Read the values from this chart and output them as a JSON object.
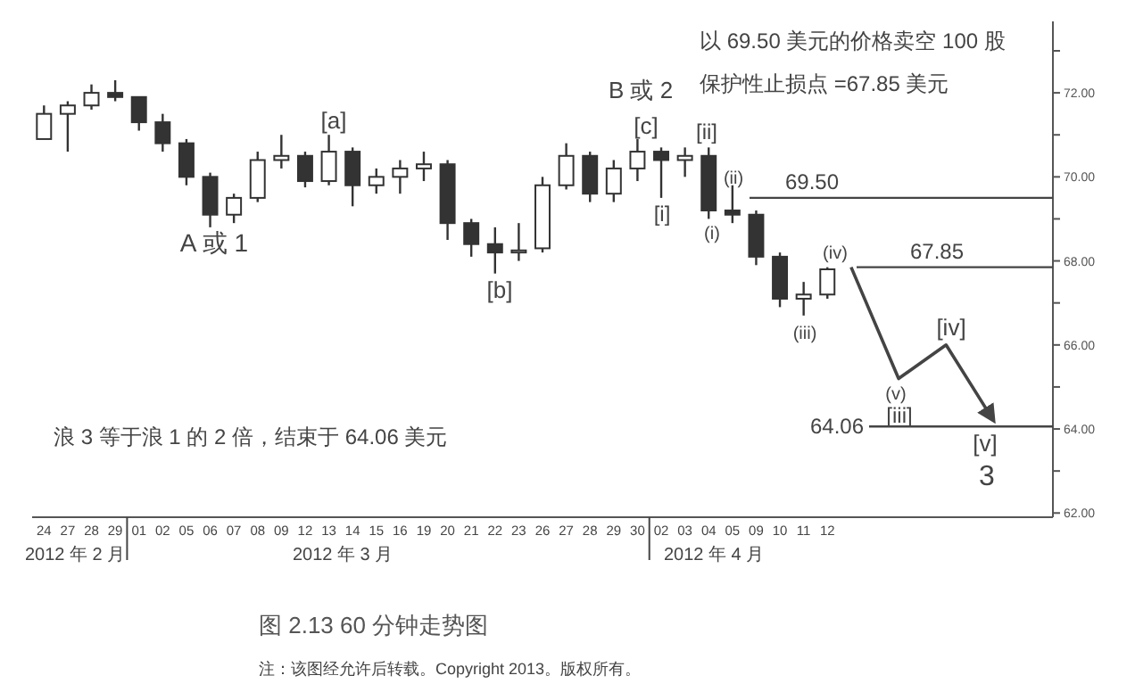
{
  "chart_data": {
    "type": "candlestick",
    "title": "图 2.13 60 分钟走势图",
    "color": "#333333",
    "categories": [
      "24",
      "27",
      "28",
      "29",
      "01",
      "02",
      "05",
      "06",
      "07",
      "08",
      "09",
      "12",
      "13",
      "14",
      "15",
      "16",
      "19",
      "20",
      "21",
      "22",
      "23",
      "26",
      "27",
      "28",
      "29",
      "30",
      "02",
      "03",
      "04",
      "05",
      "09",
      "10",
      "11",
      "12",
      null,
      null,
      null,
      null,
      null,
      null,
      null,
      null,
      null
    ],
    "ohlc": [
      [
        70.9,
        71.7,
        70.9,
        71.5
      ],
      [
        71.5,
        71.8,
        70.6,
        71.7
      ],
      [
        71.7,
        72.2,
        71.6,
        72.0
      ],
      [
        72.0,
        72.3,
        71.8,
        71.9
      ],
      [
        71.9,
        71.9,
        71.1,
        71.3
      ],
      [
        71.3,
        71.5,
        70.6,
        70.8
      ],
      [
        70.8,
        70.9,
        69.8,
        70.0
      ],
      [
        70.0,
        70.1,
        68.8,
        69.1
      ],
      [
        69.1,
        69.6,
        68.9,
        69.5
      ],
      [
        69.5,
        70.6,
        69.4,
        70.4
      ],
      [
        70.4,
        71.0,
        70.2,
        70.5
      ],
      [
        70.5,
        70.6,
        69.75,
        69.9
      ],
      [
        69.9,
        71.0,
        69.8,
        70.6
      ],
      [
        70.6,
        70.7,
        69.3,
        69.8
      ],
      [
        69.8,
        70.2,
        69.6,
        70.0
      ],
      [
        70.0,
        70.4,
        69.6,
        70.2
      ],
      [
        70.2,
        70.6,
        69.9,
        70.3
      ],
      [
        70.3,
        70.4,
        68.5,
        68.9
      ],
      [
        68.9,
        69.0,
        68.1,
        68.4
      ],
      [
        68.4,
        68.8,
        67.7,
        68.2
      ],
      [
        68.2,
        68.9,
        68.0,
        68.25
      ],
      [
        68.3,
        70.0,
        68.2,
        69.8
      ],
      [
        69.8,
        70.8,
        69.7,
        70.5
      ],
      [
        70.5,
        70.6,
        69.4,
        69.6
      ],
      [
        69.6,
        70.4,
        69.4,
        70.2
      ],
      [
        70.2,
        70.9,
        69.9,
        70.6
      ],
      [
        70.6,
        70.7,
        69.5,
        70.4
      ],
      [
        70.4,
        70.7,
        70.0,
        70.5
      ],
      [
        70.5,
        70.7,
        69.0,
        69.2
      ],
      [
        69.2,
        69.8,
        68.9,
        69.1
      ],
      [
        69.1,
        69.2,
        67.9,
        68.1
      ],
      [
        68.1,
        68.2,
        66.9,
        67.1
      ],
      [
        67.1,
        67.5,
        66.7,
        67.2
      ],
      [
        67.2,
        67.85,
        67.1,
        67.8
      ],
      null,
      null,
      null,
      null,
      null,
      null,
      null,
      null,
      null
    ],
    "series": [
      {
        "type": "line",
        "color": "#444444",
        "values": [
          null,
          null,
          null,
          null,
          null,
          null,
          null,
          null,
          null,
          null,
          null,
          null,
          null,
          null,
          null,
          null,
          null,
          null,
          null,
          null,
          null,
          null,
          null,
          null,
          null,
          null,
          null,
          null,
          null,
          null,
          null,
          null,
          null,
          null,
          67.85,
          null,
          65.2,
          null,
          66.0,
          null,
          64.2,
          null,
          null
        ]
      }
    ],
    "ylim": [
      61.9,
      73.7
    ],
    "yticks": [
      {
        "value": 62,
        "label": "62.00"
      },
      {
        "value": 63,
        "label": null
      },
      {
        "value": 64,
        "label": "64.00"
      },
      {
        "value": 65,
        "label": null
      },
      {
        "value": 66,
        "label": "66.00"
      },
      {
        "value": 67,
        "label": null
      },
      {
        "value": 68,
        "label": "68.00"
      },
      {
        "value": 69,
        "label": null
      },
      {
        "value": 70,
        "label": "70.00"
      },
      {
        "value": 71,
        "label": null
      },
      {
        "value": 72,
        "label": "72.00"
      },
      {
        "value": 73,
        "label": null
      }
    ],
    "ref_lines": [
      {
        "axis": "y",
        "value": 69.5,
        "label": "69.50",
        "color": "#444444"
      },
      {
        "axis": "y",
        "value": 67.85,
        "label": "67.85",
        "color": "#444444"
      },
      {
        "axis": "y",
        "value": 64.06,
        "label": "64.06",
        "color": "#444444"
      }
    ],
    "annotations": [
      "以 69.50 美元的价格卖空 100 股",
      "保护性止损点 =67.85 美元",
      "浪 3 等于浪 1 的 2 倍，结束于 64.06 美元",
      "A 或 1",
      "[a]",
      "[b]",
      "B 或 2",
      "[c]",
      "[i]",
      "[ii]",
      "(i)",
      "(ii)",
      "(iii)",
      "(iv)",
      "(v)",
      "[iii]",
      "[iv]",
      "[v]",
      "3",
      "2012 年 2 月",
      "2012 年 3 月",
      "2012 年 4 月",
      "注：该图经允许后转载。Copyright 2013。版权所有。"
    ]
  }
}
